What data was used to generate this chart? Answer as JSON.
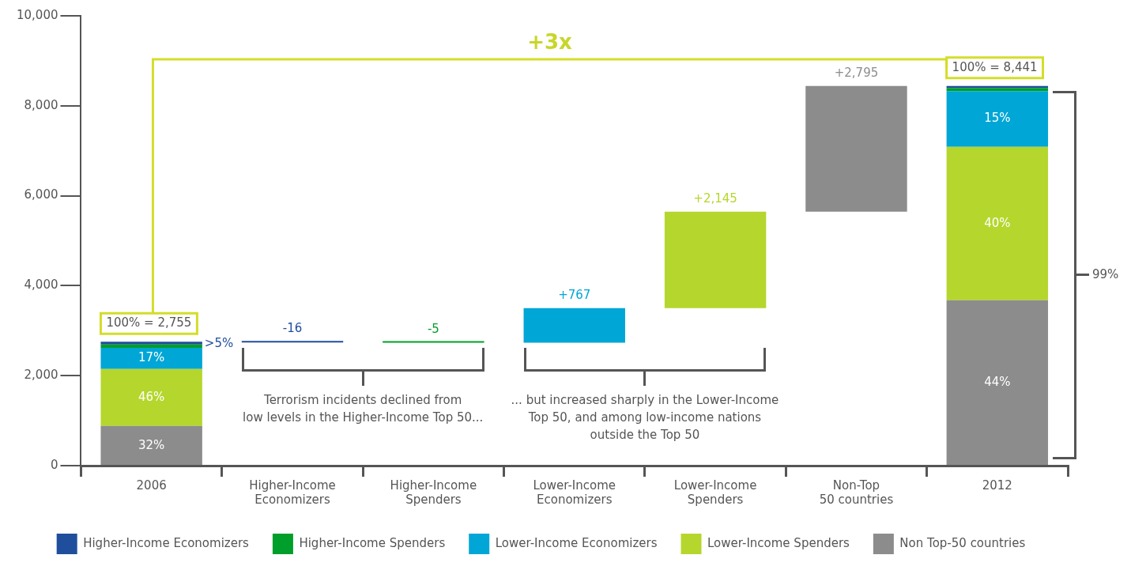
{
  "chart_data": {
    "type": "bar",
    "stacked": true,
    "categories": [
      "2006",
      "Higher-Income\nEconomizers",
      "Higher-Income\nSpenders",
      "Lower-Income\nEconomizers",
      "Lower-Income\nSpenders",
      "Non-Top\n50 countries",
      "2012"
    ],
    "series": [
      {
        "name": "Non Top-50 countries",
        "color": "#8c8c8c",
        "values": [
          882,
          null,
          null,
          null,
          null,
          2795,
          3677
        ],
        "base": [
          null,
          null,
          null,
          null,
          null,
          5646,
          null
        ],
        "value_labels": [
          null,
          null,
          null,
          null,
          null,
          "+2,795",
          null
        ]
      },
      {
        "name": "Lower-Income Spenders",
        "color": "#b5d62d",
        "values": [
          1267,
          null,
          null,
          null,
          2145,
          null,
          3412
        ],
        "base": [
          null,
          null,
          null,
          null,
          3501,
          null,
          null
        ],
        "value_labels": [
          null,
          null,
          null,
          null,
          "+2,145",
          null,
          null
        ]
      },
      {
        "name": "Lower-Income Economizers",
        "color": "#00a6d6",
        "values": [
          468,
          null,
          null,
          767,
          null,
          null,
          1235
        ],
        "base": [
          null,
          null,
          null,
          2734,
          null,
          null,
          null
        ],
        "value_labels": [
          null,
          null,
          null,
          "+767",
          null,
          null,
          null
        ]
      },
      {
        "name": "Higher-Income Spenders",
        "color": "#009e2a",
        "values": [
          78,
          null,
          -5,
          null,
          null,
          null,
          73
        ],
        "base": [
          null,
          null,
          2739,
          null,
          null,
          null,
          null
        ],
        "value_labels": [
          null,
          null,
          "-5",
          null,
          null,
          null,
          null
        ]
      },
      {
        "name": "Higher-Income Economizers",
        "color": "#1f4e9c",
        "values": [
          60,
          -16,
          null,
          null,
          null,
          null,
          44
        ],
        "base": [
          null,
          2755,
          null,
          null,
          null,
          null,
          null
        ],
        "value_labels": [
          null,
          "-16",
          null,
          null,
          null,
          null,
          null
        ]
      }
    ],
    "totals": [
      "100% = 2,755",
      null,
      null,
      null,
      null,
      null,
      "100% = 8,441"
    ],
    "ylim": [
      0,
      10000
    ],
    "yticks": [
      {
        "value": 0,
        "label": "0"
      },
      {
        "value": 2000,
        "label": "2,000"
      },
      {
        "value": 4000,
        "label": "4,000"
      },
      {
        "value": 6000,
        "label": "6,000"
      },
      {
        "value": 8000,
        "label": "8,000"
      },
      {
        "value": 10000,
        "label": "10,000"
      }
    ],
    "grid": false,
    "legend": "bottom",
    "annotations": [
      "+3x",
      "Terrorism incidents declined from\nlow levels in the Higher-Income Top 50...",
      "... but increased sharply in the Lower-Income\nTop 50, and among low-income nations\noutside the Top 50",
      ">5%",
      "99%",
      "32%",
      "46%",
      "17%",
      "44%",
      "40%",
      "15%"
    ]
  }
}
